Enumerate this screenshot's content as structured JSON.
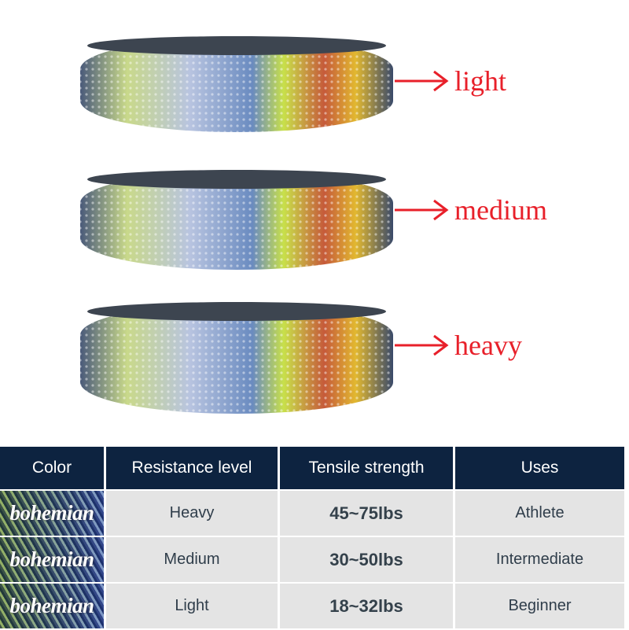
{
  "bands": [
    {
      "label": "light"
    },
    {
      "label": "medium"
    },
    {
      "label": "heavy"
    }
  ],
  "colors": {
    "label": "#e8202a",
    "header_bg": "#0d2340",
    "row_bg": "#e4e4e4"
  },
  "table": {
    "headers": [
      "Color",
      "Resistance level",
      "Tensile strength",
      "Uses"
    ],
    "rows": [
      {
        "color": "bohemian",
        "level": "Heavy",
        "strength": "45~75lbs",
        "uses": "Athlete"
      },
      {
        "color": "bohemian",
        "level": "Medium",
        "strength": "30~50lbs",
        "uses": "Intermediate"
      },
      {
        "color": "bohemian",
        "level": "Light",
        "strength": "18~32lbs",
        "uses": "Beginner"
      }
    ]
  }
}
